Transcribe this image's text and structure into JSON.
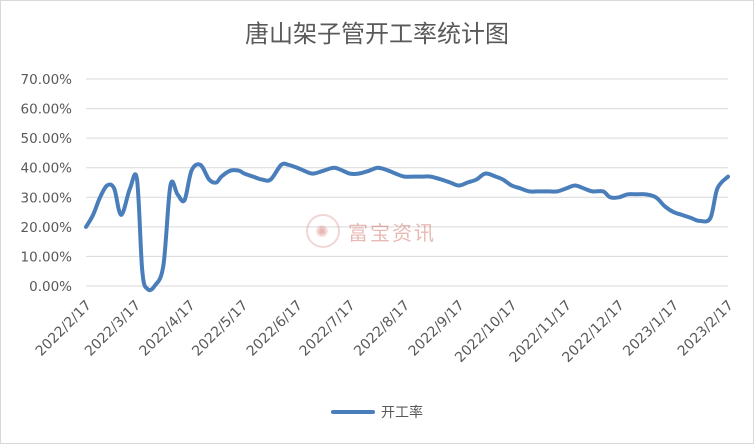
{
  "chart_data": {
    "type": "line",
    "title": "唐山架子管开工率统计图",
    "ylabel": "",
    "xlabel": "",
    "ylim": [
      0,
      0.7
    ],
    "yticks": [
      "0.00%",
      "10.00%",
      "20.00%",
      "30.00%",
      "40.00%",
      "50.00%",
      "60.00%",
      "70.00%"
    ],
    "ytick_values": [
      0,
      0.1,
      0.2,
      0.3,
      0.4,
      0.5,
      0.6,
      0.7
    ],
    "x_tick_labels": [
      "2022/2/17",
      "2022/3/17",
      "2022/4/17",
      "2022/5/17",
      "2022/6/17",
      "2022/7/17",
      "2022/8/17",
      "2022/9/17",
      "2022/10/17",
      "2022/11/17",
      "2022/12/17",
      "2023/1/17",
      "2023/2/17"
    ],
    "grid": true,
    "legend": "bottom",
    "color": "#4a7ebb",
    "series": [
      {
        "name": "开工率",
        "x": [
          "2022/2/17",
          "2022/2/21",
          "2022/2/25",
          "2022/3/1",
          "2022/3/5",
          "2022/3/9",
          "2022/3/14",
          "2022/3/18",
          "2022/3/21",
          "2022/3/24",
          "2022/3/28",
          "2022/4/2",
          "2022/4/6",
          "2022/4/10",
          "2022/4/14",
          "2022/4/18",
          "2022/4/23",
          "2022/4/28",
          "2022/5/2",
          "2022/5/5",
          "2022/5/10",
          "2022/5/15",
          "2022/5/18",
          "2022/5/23",
          "2022/5/28",
          "2022/6/2",
          "2022/6/8",
          "2022/6/12",
          "2022/6/17",
          "2022/6/21",
          "2022/6/26",
          "2022/7/2",
          "2022/7/8",
          "2022/7/13",
          "2022/7/17",
          "2022/7/22",
          "2022/7/28",
          "2022/8/2",
          "2022/8/8",
          "2022/8/12",
          "2022/8/17",
          "2022/8/22",
          "2022/8/27",
          "2022/9/1",
          "2022/9/7",
          "2022/9/12",
          "2022/9/17",
          "2022/9/22",
          "2022/9/27",
          "2022/10/2",
          "2022/10/8",
          "2022/10/12",
          "2022/10/17",
          "2022/10/22",
          "2022/10/27",
          "2022/11/1",
          "2022/11/7",
          "2022/11/12",
          "2022/11/17",
          "2022/11/22",
          "2022/11/27",
          "2022/12/2",
          "2022/12/8",
          "2022/12/12",
          "2022/12/17",
          "2022/12/22",
          "2022/12/27",
          "2023/1/1",
          "2023/1/7",
          "2023/1/12",
          "2023/1/17",
          "2023/1/22",
          "2023/1/27",
          "2023/2/1",
          "2023/2/7",
          "2023/2/11",
          "2023/2/17"
        ],
        "values": [
          0.2,
          0.24,
          0.3,
          0.34,
          0.33,
          0.24,
          0.33,
          0.36,
          0.05,
          -0.01,
          0.0,
          0.07,
          0.34,
          0.31,
          0.29,
          0.39,
          0.41,
          0.36,
          0.35,
          0.37,
          0.39,
          0.39,
          0.38,
          0.37,
          0.36,
          0.36,
          0.41,
          0.41,
          0.4,
          0.39,
          0.38,
          0.39,
          0.4,
          0.39,
          0.38,
          0.38,
          0.39,
          0.4,
          0.39,
          0.38,
          0.37,
          0.37,
          0.37,
          0.37,
          0.36,
          0.35,
          0.34,
          0.35,
          0.36,
          0.38,
          0.37,
          0.36,
          0.34,
          0.33,
          0.32,
          0.32,
          0.32,
          0.32,
          0.33,
          0.34,
          0.33,
          0.32,
          0.32,
          0.3,
          0.3,
          0.31,
          0.31,
          0.31,
          0.3,
          0.27,
          0.25,
          0.24,
          0.23,
          0.22,
          0.23,
          0.33,
          0.37
        ]
      }
    ]
  },
  "watermark": {
    "text": "富宝资讯",
    "logo": "flame-logo"
  }
}
